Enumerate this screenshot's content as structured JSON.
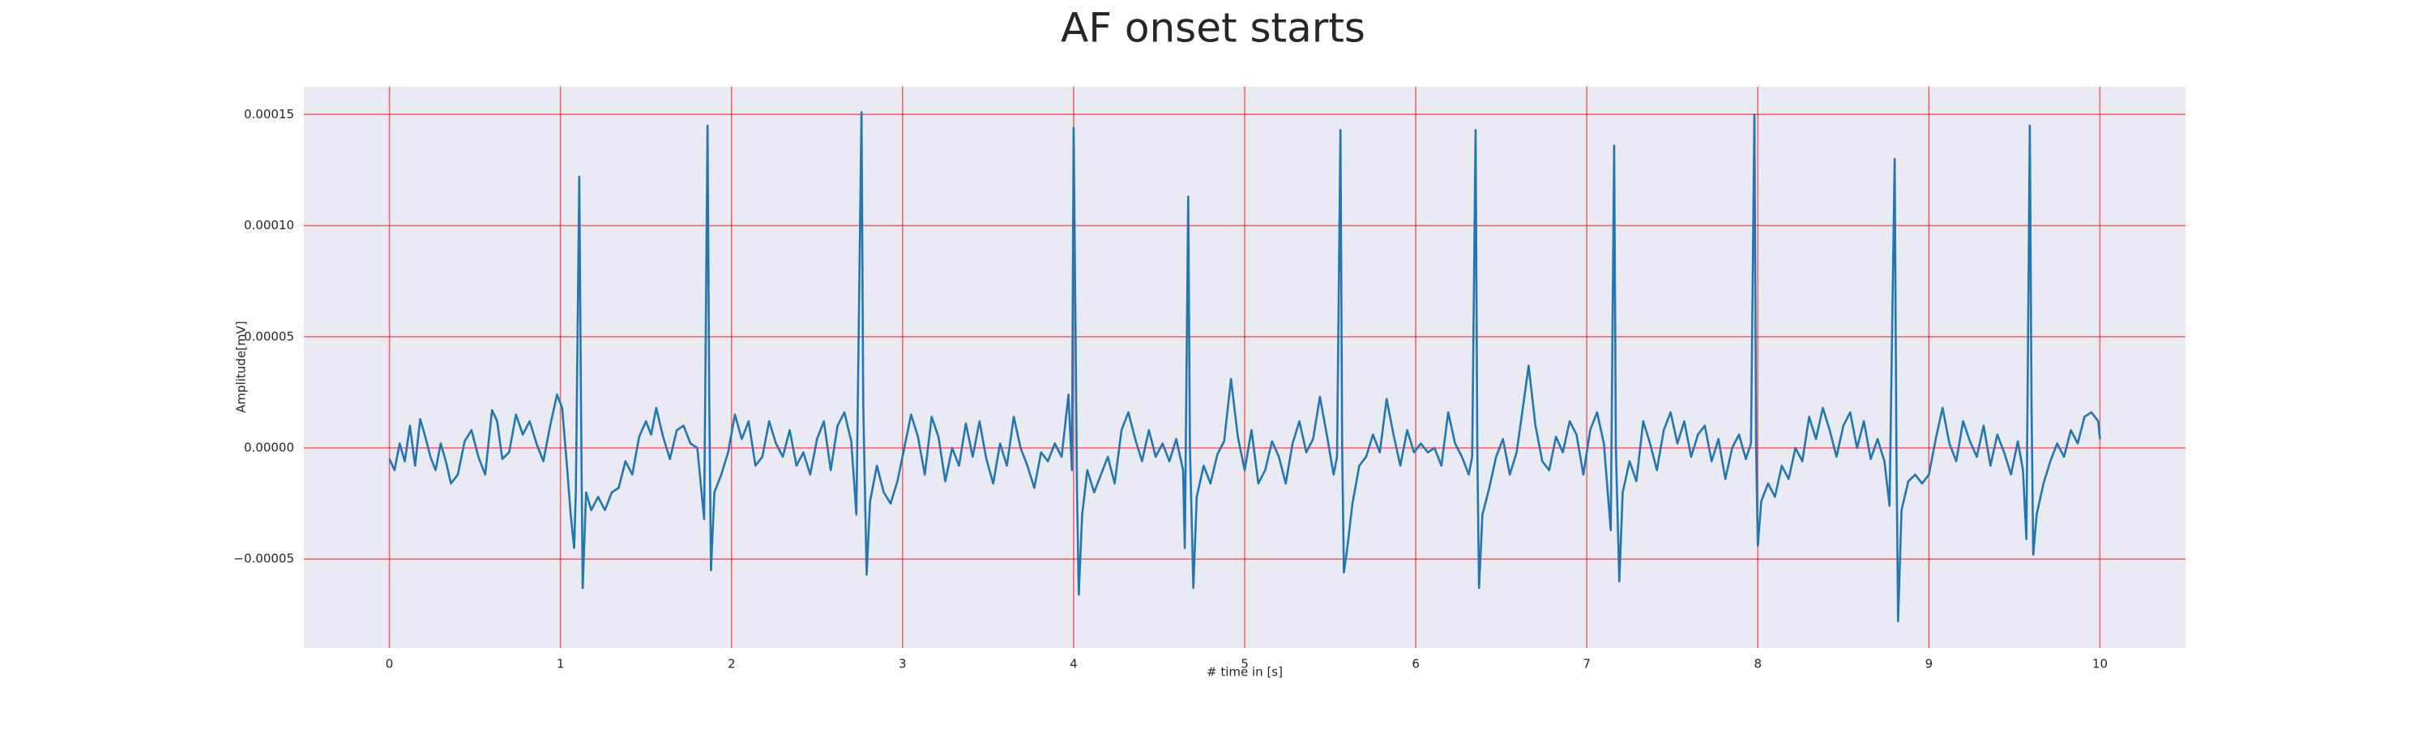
{
  "chart_data": {
    "type": "line",
    "title": "AF onset starts",
    "xlabel": "# time in [s]",
    "ylabel": "Amplitude[mV]",
    "color": "#1f77b4",
    "grid": true,
    "grid_color": "#ff0000",
    "background": "#eaeaf2",
    "xlim": [
      -0.5,
      10.5
    ],
    "ylim": [
      -9e-05,
      0.0001625
    ],
    "xticks": [
      0,
      1,
      2,
      3,
      4,
      5,
      6,
      7,
      8,
      9,
      10
    ],
    "yticks": [
      {
        "value": -5e-05,
        "label": "−0.00005"
      },
      {
        "value": 0,
        "label": "0.00000"
      },
      {
        "value": 5e-05,
        "label": "0.00005"
      },
      {
        "value": 0.0001,
        "label": "0.00010"
      },
      {
        "value": 0.00015,
        "label": "0.00015"
      }
    ],
    "x": [
      0.0,
      0.03,
      0.06,
      0.09,
      0.12,
      0.15,
      0.18,
      0.21,
      0.24,
      0.27,
      0.3,
      0.33,
      0.36,
      0.4,
      0.44,
      0.48,
      0.52,
      0.56,
      0.6,
      0.63,
      0.66,
      0.7,
      0.74,
      0.78,
      0.82,
      0.86,
      0.9,
      0.94,
      0.98,
      1.01,
      1.04,
      1.06,
      1.08,
      1.09,
      1.11,
      1.12,
      1.13,
      1.15,
      1.18,
      1.22,
      1.26,
      1.3,
      1.34,
      1.38,
      1.42,
      1.46,
      1.5,
      1.53,
      1.56,
      1.6,
      1.64,
      1.68,
      1.72,
      1.76,
      1.8,
      1.84,
      1.86,
      1.87,
      1.88,
      1.9,
      1.94,
      1.98,
      2.02,
      2.06,
      2.1,
      2.14,
      2.18,
      2.22,
      2.26,
      2.3,
      2.34,
      2.38,
      2.42,
      2.46,
      2.5,
      2.54,
      2.58,
      2.62,
      2.66,
      2.7,
      2.73,
      2.76,
      2.77,
      2.79,
      2.81,
      2.85,
      2.89,
      2.93,
      2.97,
      3.01,
      3.05,
      3.09,
      3.13,
      3.17,
      3.21,
      3.25,
      3.29,
      3.33,
      3.37,
      3.41,
      3.45,
      3.49,
      3.53,
      3.57,
      3.61,
      3.65,
      3.69,
      3.73,
      3.77,
      3.81,
      3.85,
      3.89,
      3.93,
      3.97,
      3.99,
      4.0,
      4.02,
      4.03,
      4.05,
      4.08,
      4.12,
      4.16,
      4.2,
      4.24,
      4.28,
      4.32,
      4.36,
      4.4,
      4.44,
      4.48,
      4.52,
      4.56,
      4.6,
      4.64,
      4.65,
      4.67,
      4.68,
      4.7,
      4.72,
      4.76,
      4.8,
      4.84,
      4.88,
      4.92,
      4.96,
      5.0,
      5.04,
      5.08,
      5.12,
      5.16,
      5.2,
      5.24,
      5.28,
      5.32,
      5.36,
      5.4,
      5.44,
      5.48,
      5.52,
      5.54,
      5.56,
      5.57,
      5.58,
      5.6,
      5.63,
      5.67,
      5.71,
      5.75,
      5.79,
      5.83,
      5.87,
      5.91,
      5.95,
      5.99,
      6.03,
      6.07,
      6.11,
      6.15,
      6.19,
      6.23,
      6.27,
      6.31,
      6.33,
      6.35,
      6.36,
      6.37,
      6.39,
      6.43,
      6.47,
      6.51,
      6.55,
      6.59,
      6.63,
      6.66,
      6.7,
      6.74,
      6.78,
      6.82,
      6.86,
      6.9,
      6.94,
      6.98,
      7.02,
      7.06,
      7.1,
      7.14,
      7.16,
      7.17,
      7.19,
      7.21,
      7.25,
      7.29,
      7.33,
      7.37,
      7.41,
      7.45,
      7.49,
      7.53,
      7.57,
      7.61,
      7.65,
      7.69,
      7.73,
      7.77,
      7.81,
      7.85,
      7.89,
      7.93,
      7.96,
      7.98,
      7.99,
      8.0,
      8.02,
      8.06,
      8.1,
      8.14,
      8.18,
      8.22,
      8.26,
      8.3,
      8.34,
      8.38,
      8.42,
      8.46,
      8.5,
      8.54,
      8.58,
      8.62,
      8.66,
      8.7,
      8.74,
      8.77,
      8.8,
      8.81,
      8.82,
      8.84,
      8.88,
      8.92,
      8.96,
      9.0,
      9.04,
      9.08,
      9.12,
      9.16,
      9.2,
      9.24,
      9.28,
      9.32,
      9.36,
      9.4,
      9.44,
      9.48,
      9.52,
      9.55,
      9.57,
      9.59,
      9.6,
      9.61,
      9.63,
      9.67,
      9.71,
      9.75,
      9.79,
      9.83,
      9.87,
      9.91,
      9.95,
      9.99,
      10.0
    ],
    "values": [
      -5e-06,
      -1e-05,
      2e-06,
      -6e-06,
      1e-05,
      -8e-06,
      1.3e-05,
      5e-06,
      -4e-06,
      -1e-05,
      2e-06,
      -6e-06,
      -1.6e-05,
      -1.2e-05,
      3e-06,
      8e-06,
      -4e-06,
      -1.2e-05,
      1.7e-05,
      1.2e-05,
      -5e-06,
      -2e-06,
      1.5e-05,
      6e-06,
      1.2e-05,
      2e-06,
      -6e-06,
      1e-05,
      2.4e-05,
      1.8e-05,
      -1e-05,
      -3e-05,
      -4.5e-05,
      -2e-05,
      0.000122,
      2e-05,
      -6.3e-05,
      -2e-05,
      -2.8e-05,
      -2.2e-05,
      -2.8e-05,
      -2e-05,
      -1.8e-05,
      -6e-06,
      -1.2e-05,
      5e-06,
      1.2e-05,
      6e-06,
      1.8e-05,
      5e-06,
      -5e-06,
      8e-06,
      1e-05,
      2e-06,
      0.0,
      -3.2e-05,
      0.000145,
      2e-05,
      -5.5e-05,
      -2e-05,
      -1.2e-05,
      -2e-06,
      1.5e-05,
      4e-06,
      1.2e-05,
      -8e-06,
      -4e-06,
      1.2e-05,
      2e-06,
      -4e-06,
      8e-06,
      -8e-06,
      -2e-06,
      -1.2e-05,
      4e-06,
      1.2e-05,
      -1e-05,
      1e-05,
      1.6e-05,
      3e-06,
      -3e-05,
      0.000151,
      2e-05,
      -5.7e-05,
      -2.4e-05,
      -8e-06,
      -2e-05,
      -2.5e-05,
      -1.5e-05,
      0.0,
      1.5e-05,
      5e-06,
      -1.2e-05,
      1.4e-05,
      5e-06,
      -1.5e-05,
      0.0,
      -8e-06,
      1.1e-05,
      -4e-06,
      1.2e-05,
      -5e-06,
      -1.6e-05,
      2e-06,
      -8e-06,
      1.4e-05,
      0.0,
      -8e-06,
      -1.8e-05,
      -2e-06,
      -6e-06,
      2e-06,
      -4e-06,
      2.4e-05,
      -1e-05,
      0.000144,
      -2e-05,
      -6.6e-05,
      -3e-05,
      -1e-05,
      -2e-05,
      -1.2e-05,
      -4e-06,
      -1.6e-05,
      8e-06,
      1.6e-05,
      4e-06,
      -6e-06,
      8e-06,
      -4e-06,
      2e-06,
      -6e-06,
      4e-06,
      -1e-05,
      -4.5e-05,
      0.000113,
      0.0,
      -6.3e-05,
      -2.2e-05,
      -8e-06,
      -1.6e-05,
      -3e-06,
      3e-06,
      3.1e-05,
      5e-06,
      -1e-05,
      8e-06,
      -1.6e-05,
      -1e-05,
      3e-06,
      -4e-06,
      -1.6e-05,
      2e-06,
      1.2e-05,
      -2e-06,
      4e-06,
      2.3e-05,
      6e-06,
      -1.2e-05,
      -4e-06,
      0.000143,
      0.0,
      -5.6e-05,
      -4.5e-05,
      -2.5e-05,
      -8e-06,
      -4e-06,
      6e-06,
      -2e-06,
      2.2e-05,
      6e-06,
      -8e-06,
      8e-06,
      -2e-06,
      2e-06,
      -2e-06,
      0.0,
      -8e-06,
      1.6e-05,
      2e-06,
      -4e-06,
      -1.2e-05,
      -4e-06,
      0.000143,
      0.0,
      -6.3e-05,
      -3e-05,
      -1.8e-05,
      -4e-06,
      4e-06,
      -1.2e-05,
      -2e-06,
      2e-05,
      3.7e-05,
      1e-05,
      -6e-06,
      -1e-05,
      5e-06,
      -2e-06,
      1.2e-05,
      6e-06,
      -1.2e-05,
      8e-06,
      1.6e-05,
      2e-06,
      -3.7e-05,
      0.000136,
      0.0,
      -6e-05,
      -2e-05,
      -6e-06,
      -1.5e-05,
      1.2e-05,
      2e-06,
      -1e-05,
      8e-06,
      1.6e-05,
      2e-06,
      1.2e-05,
      -4e-06,
      6e-06,
      1e-05,
      -6e-06,
      4e-06,
      -1.4e-05,
      0.0,
      6e-06,
      -5e-06,
      2e-06,
      0.00015,
      0.0,
      -4.4e-05,
      -2.4e-05,
      -1.6e-05,
      -2.2e-05,
      -8e-06,
      -1.4e-05,
      0.0,
      -6e-06,
      1.4e-05,
      4e-06,
      1.8e-05,
      8e-06,
      -4e-06,
      1e-05,
      1.6e-05,
      0.0,
      1.2e-05,
      -5e-06,
      4e-06,
      -6e-06,
      -2.6e-05,
      0.00013,
      0.0,
      -7.8e-05,
      -2.8e-05,
      -1.5e-05,
      -1.2e-05,
      -1.6e-05,
      -1.2e-05,
      4e-06,
      1.8e-05,
      2e-06,
      -6e-06,
      1.2e-05,
      3e-06,
      -4e-06,
      1e-05,
      -8e-06,
      6e-06,
      -2e-06,
      -1.2e-05,
      3e-06,
      -1e-05,
      -4.1e-05,
      0.000145,
      2e-05,
      -4.8e-05,
      -3e-05,
      -1.6e-05,
      -6e-06,
      2e-06,
      -4e-06,
      8e-06,
      2e-06,
      1.4e-05,
      1.6e-05,
      1.2e-05,
      4e-06
    ]
  }
}
